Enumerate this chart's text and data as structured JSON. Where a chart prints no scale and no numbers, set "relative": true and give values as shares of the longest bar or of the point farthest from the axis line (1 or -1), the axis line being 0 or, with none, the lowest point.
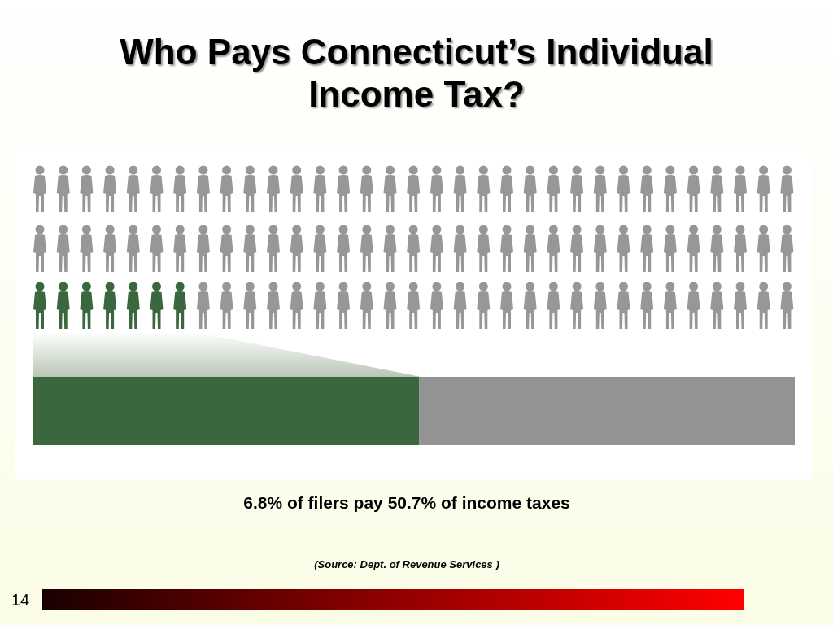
{
  "chart_data": {
    "type": "bar",
    "title": "Who Pays Connecticut’s Individual Income Tax?",
    "orientation": "horizontal",
    "stacked": true,
    "relative": true,
    "categories": [
      null
    ],
    "series": [
      {
        "color": "#3a673e",
        "values": [
          0.507
        ]
      },
      {
        "color": "#939393",
        "values": [
          0.493
        ]
      }
    ],
    "annotations": [
      "6.8% of filers pay 50.7% of income taxes",
      "(Source: Dept. of Revenue Services )",
      "14"
    ]
  }
}
